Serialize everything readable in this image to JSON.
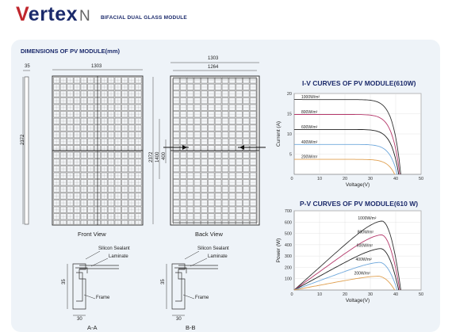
{
  "header": {
    "brand_first": "V",
    "brand_rest": "ertex",
    "brand_suffix": "N",
    "subtitle": "BIFACIAL DUAL GLASS MODULE"
  },
  "dimensions": {
    "title": "DIMENSIONS OF PV MODULE(mm)",
    "side_thickness": "35",
    "side_height": "2372",
    "front_width": "1303",
    "back_outer_width": "1303",
    "back_inner_width": "1264",
    "back_height": "2372",
    "back_mount_spacing": "1400",
    "back_short_spacing": "400",
    "front_caption": "Front View",
    "back_caption": "Back View"
  },
  "sections": {
    "aa": {
      "caption": "A-A",
      "silicon": "Silicon Sealant",
      "laminate": "Laminate",
      "frame": "Frame",
      "height": "35",
      "width": "30"
    },
    "bb": {
      "caption": "B-B",
      "silicon": "Silicon Sealant",
      "laminate": "Laminate",
      "frame": "Frame",
      "height": "35",
      "width": "30"
    }
  },
  "colors": {
    "brand_blue": "#1b2a6b",
    "brand_red": "#c0262d",
    "panel_bg": "#eef3f8"
  },
  "chart_data": [
    {
      "type": "line",
      "title": "I-V CURVES OF PV MODULE(610W)",
      "xlabel": "Voltage(V)",
      "ylabel": "Current (A)",
      "xlim": [
        0,
        50
      ],
      "ylim": [
        0,
        20
      ],
      "xticks": [
        "10",
        "20",
        "30",
        "40",
        "50"
      ],
      "yticks": [
        "5",
        "10",
        "15",
        "20"
      ],
      "series": [
        {
          "name": "1000W/m²",
          "color": "#333333",
          "isc": 18.5,
          "voc": 42.0
        },
        {
          "name": "800W/m²",
          "color": "#b5396b",
          "isc": 14.8,
          "voc": 41.6
        },
        {
          "name": "600W/m²",
          "color": "#222222",
          "isc": 11.1,
          "voc": 41.2
        },
        {
          "name": "400W/m²",
          "color": "#6fa8dc",
          "isc": 7.4,
          "voc": 40.6
        },
        {
          "name": "200W/m²",
          "color": "#e0a050",
          "isc": 3.7,
          "voc": 39.6
        }
      ]
    },
    {
      "type": "line",
      "title": "P-V CURVES OF PV MODULE(610 W)",
      "xlabel": "Voltage(V)",
      "ylabel": "Power (W)",
      "xlim": [
        0,
        50
      ],
      "ylim": [
        0,
        700
      ],
      "xticks": [
        "10",
        "20",
        "30",
        "40",
        "50"
      ],
      "yticks": [
        "100",
        "200",
        "300",
        "400",
        "500",
        "600",
        "700"
      ],
      "series": [
        {
          "name": "1000W/m²",
          "color": "#333333",
          "pmax": 610,
          "vmp": 34.5,
          "voc": 42.0
        },
        {
          "name": "800W/m²",
          "color": "#b5396b",
          "pmax": 488,
          "vmp": 34.3,
          "voc": 41.6
        },
        {
          "name": "600W/m²",
          "color": "#222222",
          "pmax": 366,
          "vmp": 34.0,
          "voc": 41.2
        },
        {
          "name": "400W/m²",
          "color": "#6fa8dc",
          "pmax": 244,
          "vmp": 33.6,
          "voc": 40.6
        },
        {
          "name": "200W/m²",
          "color": "#e0a050",
          "pmax": 122,
          "vmp": 33.0,
          "voc": 39.6
        }
      ]
    }
  ]
}
